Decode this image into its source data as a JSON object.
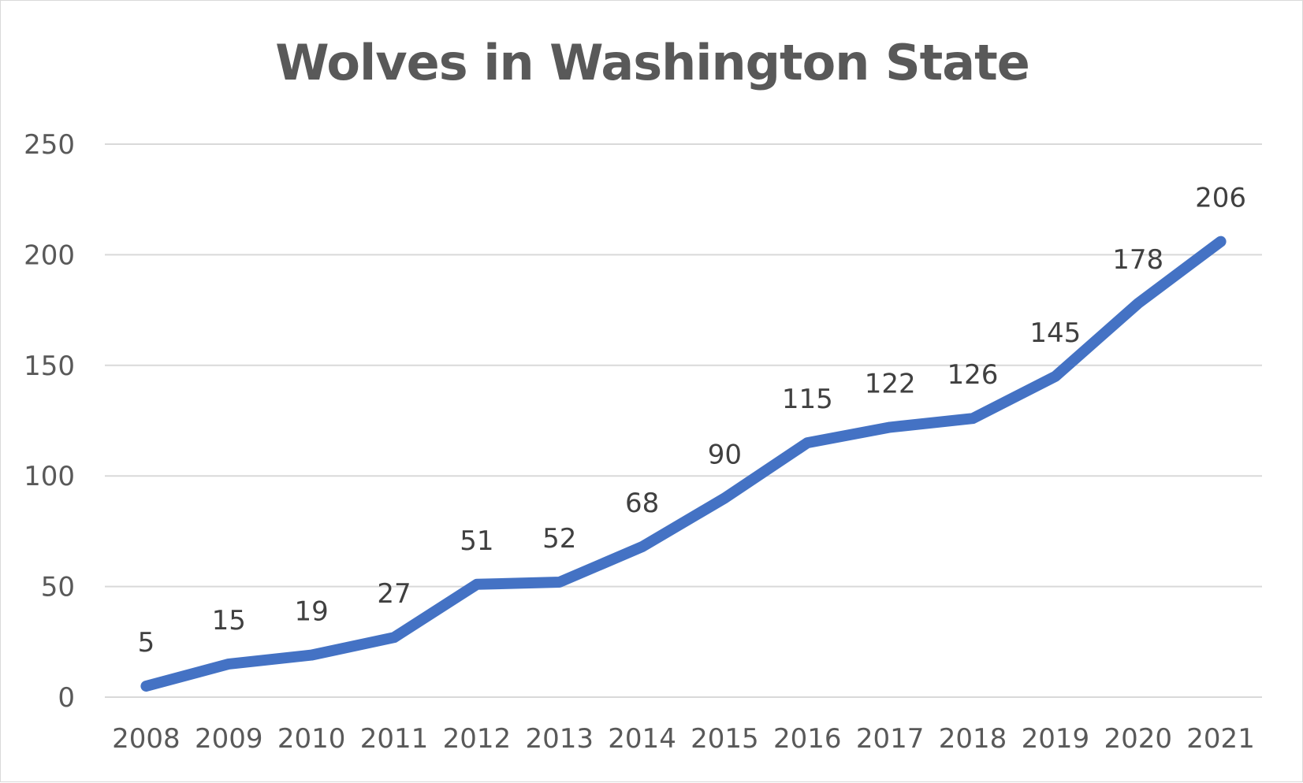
{
  "chart_data": {
    "type": "line",
    "title": "Wolves in Washington State",
    "xlabel": "",
    "ylabel": "",
    "categories": [
      "2008",
      "2009",
      "2010",
      "2011",
      "2012",
      "2013",
      "2014",
      "2015",
      "2016",
      "2017",
      "2018",
      "2019",
      "2020",
      "2021"
    ],
    "series": [
      {
        "values": [
          5,
          15,
          19,
          27,
          51,
          52,
          68,
          90,
          115,
          122,
          126,
          145,
          178,
          206
        ],
        "color": "#4472c4"
      }
    ],
    "ylim": [
      0,
      250
    ],
    "yticks": [
      "0",
      "50",
      "100",
      "150",
      "200",
      "250"
    ],
    "grid": true,
    "legend": "none",
    "data_labels": true
  }
}
